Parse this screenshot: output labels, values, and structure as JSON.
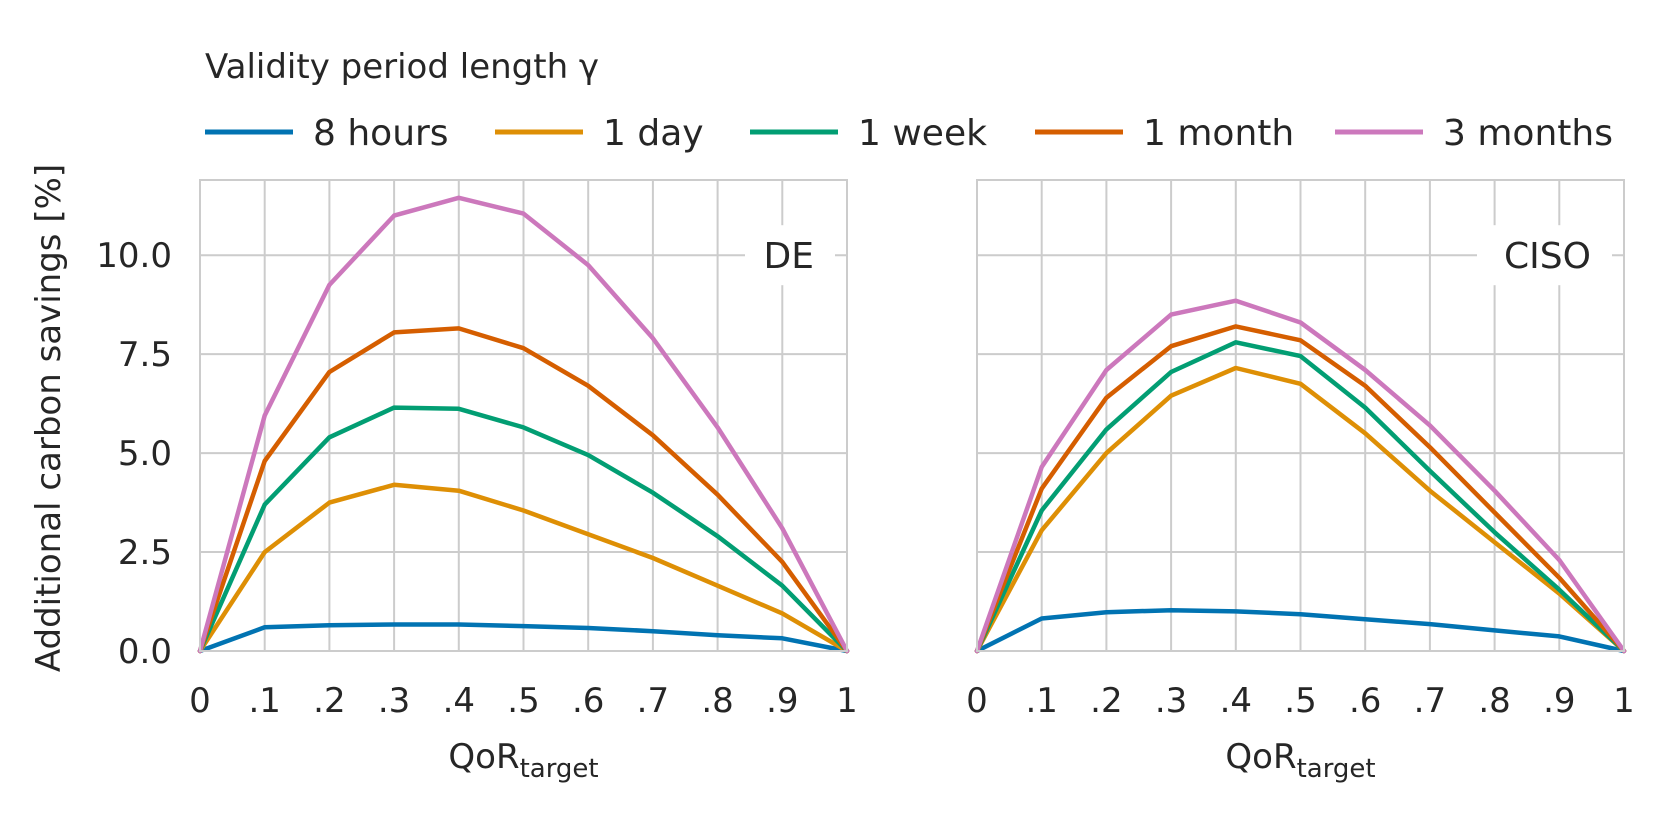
{
  "chart_data": {
    "type": "line",
    "legend": {
      "title": "Validity period length γ",
      "placement": "top"
    },
    "y_axis": {
      "label": "Additional carbon savings [%]",
      "ylim": [
        0,
        11.9
      ],
      "ticks": [
        0,
        2.5,
        5,
        7.5,
        10
      ],
      "tick_labels": [
        "0.0",
        "2.5",
        "5.0",
        "7.5",
        "10.0"
      ]
    },
    "x_axis": {
      "label_main": "QoR",
      "label_sub": "target",
      "xlim": [
        0,
        1
      ],
      "ticks": [
        0,
        0.1,
        0.2,
        0.3,
        0.4,
        0.5,
        0.6,
        0.7,
        0.8,
        0.9,
        1
      ],
      "tick_labels": [
        "0",
        ".1",
        ".2",
        ".3",
        ".4",
        ".5",
        ".6",
        ".7",
        ".8",
        ".9",
        "1"
      ]
    },
    "x": [
      0,
      0.1,
      0.2,
      0.3,
      0.4,
      0.5,
      0.6,
      0.7,
      0.8,
      0.9,
      1
    ],
    "grid": true,
    "series_colors": [
      "#0173b2",
      "#de8f05",
      "#029e73",
      "#d55e00",
      "#cc78bc"
    ],
    "panels": [
      {
        "label": "DE",
        "series": [
          {
            "name": "8 hours",
            "values": [
              0,
              0.6,
              0.65,
              0.67,
              0.67,
              0.63,
              0.58,
              0.5,
              0.4,
              0.32,
              0
            ]
          },
          {
            "name": "1 day",
            "values": [
              0,
              2.5,
              3.75,
              4.2,
              4.05,
              3.55,
              2.95,
              2.35,
              1.65,
              0.95,
              0
            ]
          },
          {
            "name": "1 week",
            "values": [
              0,
              3.7,
              5.4,
              6.15,
              6.12,
              5.65,
              4.95,
              4.0,
              2.9,
              1.65,
              0
            ]
          },
          {
            "name": "1 month",
            "values": [
              0,
              4.8,
              7.05,
              8.05,
              8.15,
              7.65,
              6.7,
              5.45,
              3.95,
              2.25,
              0
            ]
          },
          {
            "name": "3 months",
            "values": [
              0,
              5.95,
              9.25,
              11.0,
              11.45,
              11.05,
              9.75,
              7.9,
              5.65,
              3.1,
              0
            ]
          }
        ]
      },
      {
        "label": "CISO",
        "series": [
          {
            "name": "8 hours",
            "values": [
              0,
              0.82,
              0.98,
              1.03,
              1.0,
              0.93,
              0.8,
              0.68,
              0.52,
              0.37,
              0
            ]
          },
          {
            "name": "1 day",
            "values": [
              0,
              3.05,
              5.0,
              6.45,
              7.15,
              6.75,
              5.5,
              4.05,
              2.75,
              1.45,
              0
            ]
          },
          {
            "name": "1 week",
            "values": [
              0,
              3.55,
              5.6,
              7.05,
              7.8,
              7.45,
              6.15,
              4.55,
              3.0,
              1.55,
              0
            ]
          },
          {
            "name": "1 month",
            "values": [
              0,
              4.1,
              6.4,
              7.7,
              8.2,
              7.85,
              6.7,
              5.15,
              3.5,
              1.85,
              0
            ]
          },
          {
            "name": "3 months",
            "values": [
              0,
              4.65,
              7.1,
              8.5,
              8.85,
              8.3,
              7.1,
              5.7,
              4.05,
              2.3,
              0
            ]
          }
        ]
      }
    ]
  }
}
